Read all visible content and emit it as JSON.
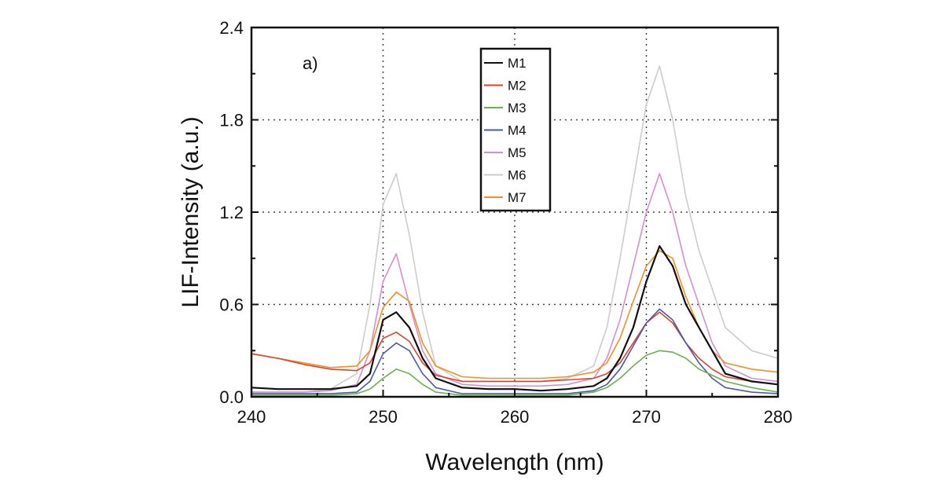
{
  "chart_data": {
    "type": "line",
    "panel_label": "a)",
    "xlabel": "Wavelength (nm)",
    "ylabel": "LIF-Intensity (a.u.)",
    "xlim": [
      240,
      280
    ],
    "ylim": [
      0,
      2.4
    ],
    "xticks": [
      "240",
      "250",
      "260",
      "270",
      "280"
    ],
    "yticks": [
      "0.0",
      "0.6",
      "1.2",
      "1.8",
      "2.4"
    ],
    "grid": true,
    "legend_position": "top-center",
    "x": [
      240,
      242,
      244,
      246,
      248,
      249,
      250,
      251,
      252,
      253,
      254,
      256,
      258,
      260,
      262,
      264,
      266,
      267,
      268,
      269,
      270,
      271,
      272,
      273,
      274,
      275,
      276,
      278,
      280
    ],
    "series": [
      {
        "name": "M1",
        "color": "#111111",
        "values": [
          0.06,
          0.05,
          0.05,
          0.05,
          0.07,
          0.15,
          0.5,
          0.55,
          0.45,
          0.25,
          0.12,
          0.06,
          0.05,
          0.05,
          0.04,
          0.05,
          0.07,
          0.12,
          0.25,
          0.45,
          0.75,
          0.98,
          0.85,
          0.6,
          0.45,
          0.3,
          0.15,
          0.1,
          0.08
        ]
      },
      {
        "name": "M2",
        "color": "#d9452a",
        "values": [
          0.28,
          0.25,
          0.21,
          0.18,
          0.17,
          0.22,
          0.38,
          0.42,
          0.36,
          0.22,
          0.14,
          0.1,
          0.1,
          0.1,
          0.1,
          0.11,
          0.12,
          0.15,
          0.22,
          0.35,
          0.48,
          0.55,
          0.48,
          0.35,
          0.25,
          0.18,
          0.13,
          0.1,
          0.08
        ]
      },
      {
        "name": "M3",
        "color": "#6ab04c",
        "values": [
          0.01,
          0.01,
          0.01,
          0.01,
          0.02,
          0.05,
          0.12,
          0.18,
          0.15,
          0.08,
          0.03,
          0.01,
          0.01,
          0.01,
          0.01,
          0.01,
          0.03,
          0.06,
          0.12,
          0.2,
          0.27,
          0.3,
          0.29,
          0.25,
          0.18,
          0.14,
          0.1,
          0.06,
          0.03
        ]
      },
      {
        "name": "M4",
        "color": "#4a5aa8",
        "values": [
          0.02,
          0.02,
          0.02,
          0.02,
          0.03,
          0.1,
          0.28,
          0.35,
          0.3,
          0.15,
          0.06,
          0.02,
          0.02,
          0.02,
          0.02,
          0.02,
          0.04,
          0.08,
          0.18,
          0.33,
          0.48,
          0.57,
          0.5,
          0.35,
          0.22,
          0.12,
          0.06,
          0.03,
          0.02
        ]
      },
      {
        "name": "M5",
        "color": "#d58fd0",
        "values": [
          0.03,
          0.03,
          0.03,
          0.04,
          0.08,
          0.3,
          0.75,
          0.93,
          0.6,
          0.3,
          0.15,
          0.08,
          0.07,
          0.07,
          0.07,
          0.08,
          0.12,
          0.25,
          0.5,
          0.85,
          1.2,
          1.45,
          1.2,
          0.85,
          0.6,
          0.35,
          0.2,
          0.12,
          0.1
        ]
      },
      {
        "name": "M6",
        "color": "#cccccc",
        "values": [
          0.03,
          0.03,
          0.03,
          0.05,
          0.15,
          0.6,
          1.25,
          1.45,
          1.05,
          0.55,
          0.2,
          0.1,
          0.1,
          0.1,
          0.1,
          0.12,
          0.2,
          0.45,
          0.9,
          1.4,
          1.9,
          2.15,
          1.8,
          1.3,
          0.95,
          0.7,
          0.45,
          0.3,
          0.25
        ]
      },
      {
        "name": "M7",
        "color": "#f0902a",
        "values": [
          0.28,
          0.25,
          0.22,
          0.19,
          0.2,
          0.3,
          0.58,
          0.68,
          0.62,
          0.35,
          0.2,
          0.13,
          0.12,
          0.12,
          0.12,
          0.13,
          0.16,
          0.22,
          0.38,
          0.62,
          0.85,
          0.95,
          0.9,
          0.65,
          0.45,
          0.3,
          0.22,
          0.18,
          0.16
        ]
      }
    ]
  }
}
